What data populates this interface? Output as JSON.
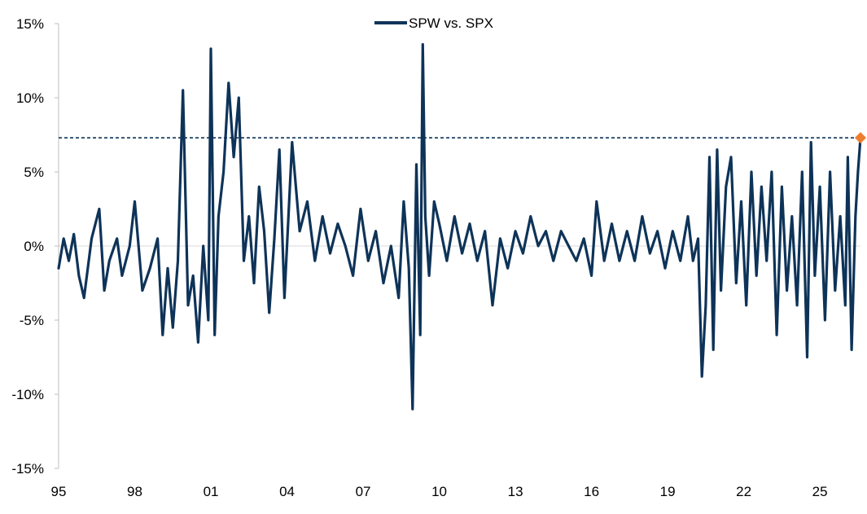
{
  "chart_data": {
    "type": "line",
    "title": "",
    "xlabel": "",
    "ylabel": "",
    "legend": {
      "placement": "top-center"
    },
    "grid": false,
    "xlim": [
      1995,
      2026.6
    ],
    "ylim": [
      -15,
      15
    ],
    "x_ticks": [
      1995,
      1998,
      2001,
      2004,
      2007,
      2010,
      2013,
      2016,
      2019,
      2022,
      2025
    ],
    "x_tick_labels": [
      "95",
      "98",
      "01",
      "04",
      "07",
      "10",
      "13",
      "16",
      "19",
      "22",
      "25"
    ],
    "y_ticks": [
      -15,
      -10,
      -5,
      0,
      5,
      10,
      15
    ],
    "y_tick_labels": [
      "-15%",
      "-10%",
      "-5%",
      "0%",
      "5%",
      "10%",
      "15%"
    ],
    "reference_line": {
      "y": 7.3,
      "style": "dashed",
      "color": "#0e3358"
    },
    "latest_marker": {
      "x": 2026.6,
      "y": 7.3,
      "shape": "diamond",
      "color": "#ed7d31"
    },
    "series": [
      {
        "name": "SPW vs. SPX",
        "color": "#0e3358",
        "x": [
          1995.0,
          1995.2,
          1995.4,
          1995.6,
          1995.8,
          1996.0,
          1996.3,
          1996.6,
          1996.8,
          1997.0,
          1997.3,
          1997.5,
          1997.8,
          1998.0,
          1998.3,
          1998.6,
          1998.9,
          1999.1,
          1999.3,
          1999.5,
          1999.7,
          1999.9,
          2000.1,
          2000.3,
          2000.5,
          2000.7,
          2000.9,
          2001.0,
          2001.15,
          2001.3,
          2001.5,
          2001.7,
          2001.9,
          2002.1,
          2002.3,
          2002.5,
          2002.7,
          2002.9,
          2003.1,
          2003.3,
          2003.5,
          2003.7,
          2003.9,
          2004.2,
          2004.5,
          2004.8,
          2005.1,
          2005.4,
          2005.7,
          2006.0,
          2006.3,
          2006.6,
          2006.9,
          2007.2,
          2007.5,
          2007.8,
          2008.1,
          2008.4,
          2008.6,
          2008.8,
          2008.95,
          2009.1,
          2009.25,
          2009.35,
          2009.45,
          2009.6,
          2009.8,
          2010.0,
          2010.3,
          2010.6,
          2010.9,
          2011.2,
          2011.5,
          2011.8,
          2012.1,
          2012.4,
          2012.7,
          2013.0,
          2013.3,
          2013.6,
          2013.9,
          2014.2,
          2014.5,
          2014.8,
          2015.1,
          2015.4,
          2015.7,
          2016.0,
          2016.2,
          2016.5,
          2016.8,
          2017.1,
          2017.4,
          2017.7,
          2018.0,
          2018.3,
          2018.6,
          2018.9,
          2019.2,
          2019.5,
          2019.8,
          2020.0,
          2020.2,
          2020.35,
          2020.5,
          2020.65,
          2020.8,
          2020.95,
          2021.1,
          2021.3,
          2021.5,
          2021.7,
          2021.9,
          2022.1,
          2022.3,
          2022.5,
          2022.7,
          2022.9,
          2023.1,
          2023.3,
          2023.5,
          2023.7,
          2023.9,
          2024.1,
          2024.3,
          2024.5,
          2024.65,
          2024.8,
          2025.0,
          2025.2,
          2025.4,
          2025.6,
          2025.8,
          2026.0,
          2026.1,
          2026.25,
          2026.4,
          2026.5,
          2026.6
        ],
        "values": [
          -1.5,
          0.5,
          -1.0,
          0.8,
          -2.0,
          -3.5,
          0.5,
          2.5,
          -3.0,
          -1.0,
          0.5,
          -2.0,
          0.0,
          3.0,
          -3.0,
          -1.5,
          0.5,
          -6.0,
          -1.5,
          -5.5,
          -1.0,
          10.5,
          -4.0,
          -2.0,
          -6.5,
          0.0,
          -5.0,
          13.3,
          -6.0,
          2.0,
          5.0,
          11.0,
          6.0,
          10.0,
          -1.0,
          2.0,
          -2.5,
          4.0,
          1.0,
          -4.5,
          0.5,
          6.5,
          -3.5,
          7.0,
          1.0,
          3.0,
          -1.0,
          2.0,
          -0.5,
          1.5,
          0.0,
          -2.0,
          2.5,
          -1.0,
          1.0,
          -2.5,
          0.0,
          -3.5,
          3.0,
          -1.5,
          -11.0,
          5.5,
          -6.0,
          13.6,
          2.0,
          -2.0,
          3.0,
          1.5,
          -1.0,
          2.0,
          -0.5,
          1.5,
          -1.0,
          1.0,
          -4.0,
          0.5,
          -1.5,
          1.0,
          -0.5,
          2.0,
          0.0,
          1.0,
          -1.0,
          1.0,
          0.0,
          -1.0,
          0.5,
          -2.0,
          3.0,
          -1.0,
          1.5,
          -1.0,
          1.0,
          -1.0,
          2.0,
          -0.5,
          1.0,
          -1.5,
          1.0,
          -1.0,
          2.0,
          -1.0,
          0.5,
          -8.8,
          -4.0,
          6.0,
          -7.0,
          6.5,
          -3.0,
          4.0,
          6.0,
          -2.5,
          3.0,
          -4.0,
          5.0,
          -2.0,
          4.0,
          -1.0,
          5.0,
          -6.0,
          4.0,
          -3.0,
          2.0,
          -4.0,
          5.0,
          -7.5,
          7.0,
          -2.0,
          4.0,
          -5.0,
          5.0,
          -3.0,
          2.0,
          -4.0,
          6.0,
          -7.0,
          2.0,
          5.0,
          7.3
        ]
      }
    ]
  }
}
